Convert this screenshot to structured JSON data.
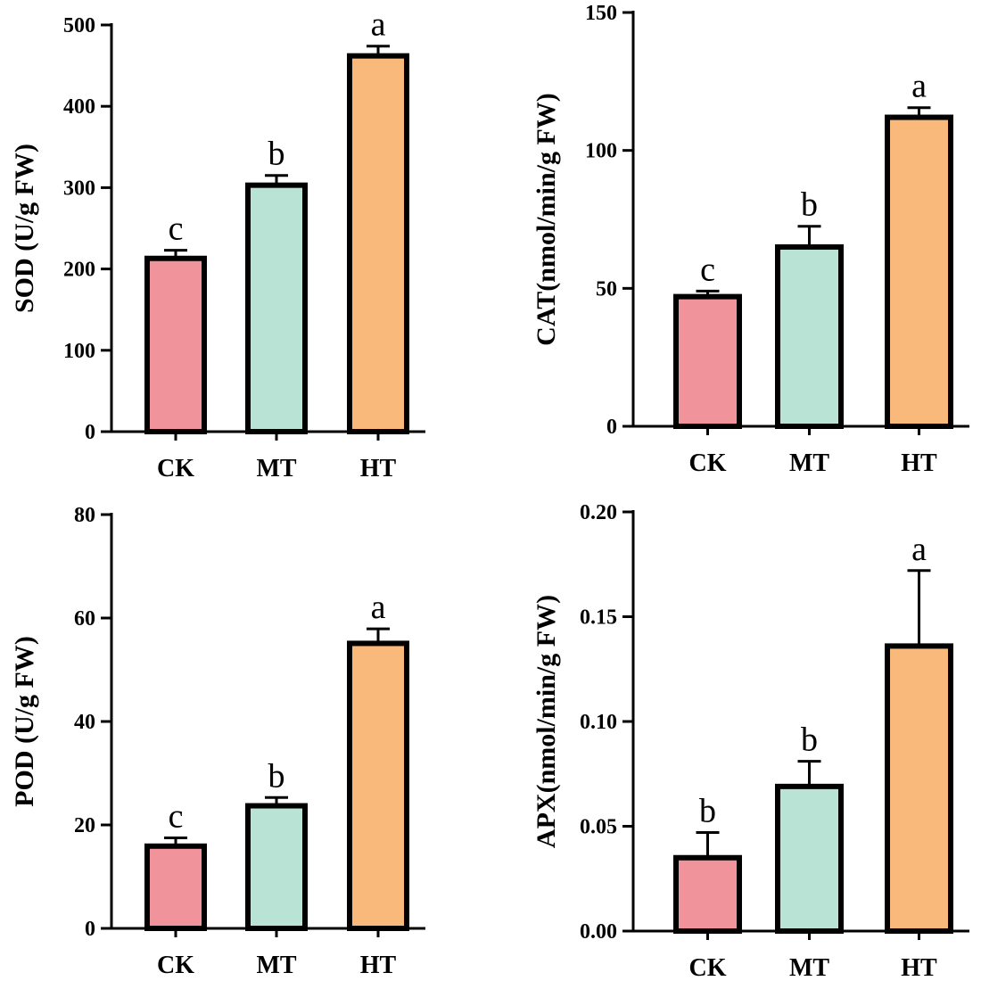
{
  "chart_data": [
    {
      "type": "bar",
      "ylabel": "SOD (U/g FW)",
      "categories": [
        "CK",
        "MT",
        "HT"
      ],
      "values": [
        213,
        303,
        462
      ],
      "errors": [
        10,
        12,
        12
      ],
      "significance": [
        "c",
        "b",
        "a"
      ],
      "colors": [
        "#f0939a",
        "#b9e3d4",
        "#f9b97a"
      ],
      "ylim": [
        0,
        500
      ],
      "yticks": [
        0,
        100,
        200,
        300,
        400,
        500
      ],
      "ytick_labels": [
        "0",
        "100",
        "200",
        "300",
        "400",
        "500"
      ],
      "grid": false
    },
    {
      "type": "bar",
      "ylabel": "CAT(nmol/min/g FW)",
      "categories": [
        "CK",
        "MT",
        "HT"
      ],
      "values": [
        47,
        65,
        112
      ],
      "errors": [
        2,
        7.5,
        3.5
      ],
      "significance": [
        "c",
        "b",
        "a"
      ],
      "colors": [
        "#f0939a",
        "#b9e3d4",
        "#f9b97a"
      ],
      "ylim": [
        0,
        150
      ],
      "yticks": [
        0,
        50,
        100,
        150
      ],
      "ytick_labels": [
        "0",
        "50",
        "100",
        "150"
      ],
      "grid": false
    },
    {
      "type": "bar",
      "ylabel": "POD (U/g FW)",
      "categories": [
        "CK",
        "MT",
        "HT"
      ],
      "values": [
        15.9,
        23.7,
        55.1
      ],
      "errors": [
        1.6,
        1.6,
        2.8
      ],
      "significance": [
        "c",
        "b",
        "a"
      ],
      "colors": [
        "#f0939a",
        "#b9e3d4",
        "#f9b97a"
      ],
      "ylim": [
        0,
        80
      ],
      "yticks": [
        0,
        20,
        40,
        60,
        80
      ],
      "ytick_labels": [
        "0",
        "20",
        "40",
        "60",
        "80"
      ],
      "grid": false
    },
    {
      "type": "bar",
      "ylabel": "APX(nmol/min/g FW)",
      "categories": [
        "CK",
        "MT",
        "HT"
      ],
      "values": [
        0.035,
        0.069,
        0.136
      ],
      "errors": [
        0.012,
        0.012,
        0.036
      ],
      "significance": [
        "b",
        "b",
        "a"
      ],
      "colors": [
        "#f0939a",
        "#b9e3d4",
        "#f9b97a"
      ],
      "ylim": [
        0,
        0.2
      ],
      "yticks": [
        0,
        0.05,
        0.1,
        0.15,
        0.2
      ],
      "ytick_labels": [
        "0.00",
        "0.05",
        "0.10",
        "0.15",
        "0.20"
      ],
      "grid": false
    }
  ]
}
